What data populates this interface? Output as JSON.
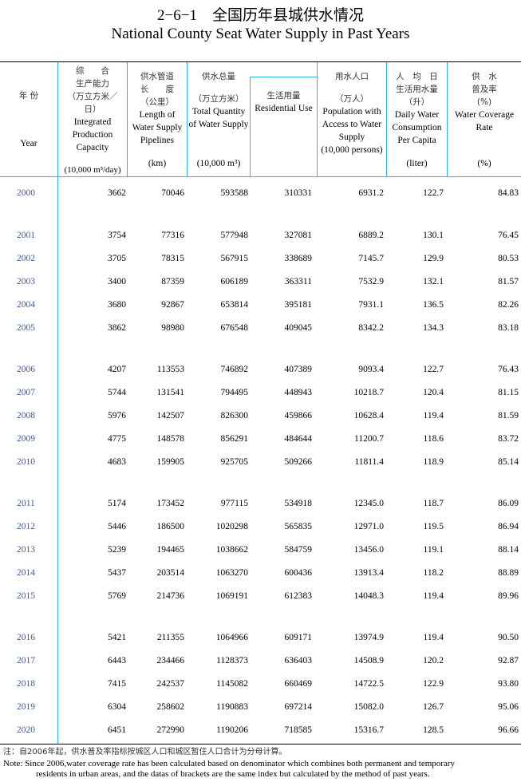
{
  "title_cn": "2−6−1　全国历年县城供水情况",
  "title_en": "National County Seat Water Supply in Past Years",
  "headers": {
    "year_cn": "年 份",
    "year_en": "Year",
    "c1_cn": "综　　合\n生产能力\n（万立方米／\n日）",
    "c1_en": "Integrated Production Capacity",
    "c1_unit": "(10,000 m³/day)",
    "c2_cn": "供水管道\n长　　度\n（公里）",
    "c2_en": "Length of Water Supply Pipelines",
    "c2_unit": "(km)",
    "c3_cn": "供水总量",
    "c3_cn_unit": "（万立方米）",
    "c3_en": "Total Quantity of Water Supply",
    "c3_unit": "(10,000 m³)",
    "c4_cn": "生活用量",
    "c4_en": "Residential Use",
    "c5_cn": "用水人口",
    "c5_cn_unit": "（万人）",
    "c5_en": "Population with Access to Water Supply",
    "c5_unit": "(10,000 persons)",
    "c6_cn": "人　均　日\n生活用水量\n（升）",
    "c6_en": "Daily Water Consumption Per Capita",
    "c6_unit": "(liter)",
    "c7_cn": "供　水\n普及率\n(%)",
    "c7_en": "Water Coverage Rate",
    "c7_unit": "(%)"
  },
  "rows": [
    [
      "2000",
      "3662",
      "70046",
      "593588",
      "310331",
      "6931.2",
      "122.7",
      "84.83"
    ],
    [
      "2001",
      "3754",
      "77316",
      "577948",
      "327081",
      "6889.2",
      "130.1",
      "76.45"
    ],
    [
      "2002",
      "3705",
      "78315",
      "567915",
      "338689",
      "7145.7",
      "129.9",
      "80.53"
    ],
    [
      "2003",
      "3400",
      "87359",
      "606189",
      "363311",
      "7532.9",
      "132.1",
      "81.57"
    ],
    [
      "2004",
      "3680",
      "92867",
      "653814",
      "395181",
      "7931.1",
      "136.5",
      "82.26"
    ],
    [
      "2005",
      "3862",
      "98980",
      "676548",
      "409045",
      "8342.2",
      "134.3",
      "83.18"
    ],
    [
      "2006",
      "4207",
      "113553",
      "746892",
      "407389",
      "9093.4",
      "122.7",
      "76.43"
    ],
    [
      "2007",
      "5744",
      "131541",
      "794495",
      "448943",
      "10218.7",
      "120.4",
      "81.15"
    ],
    [
      "2008",
      "5976",
      "142507",
      "826300",
      "459866",
      "10628.4",
      "119.4",
      "81.59"
    ],
    [
      "2009",
      "4775",
      "148578",
      "856291",
      "484644",
      "11200.7",
      "118.6",
      "83.72"
    ],
    [
      "2010",
      "4683",
      "159905",
      "925705",
      "509266",
      "11811.4",
      "118.9",
      "85.14"
    ],
    [
      "2011",
      "5174",
      "173452",
      "977115",
      "534918",
      "12345.0",
      "118.7",
      "86.09"
    ],
    [
      "2012",
      "5446",
      "186500",
      "1020298",
      "565835",
      "12971.0",
      "119.5",
      "86.94"
    ],
    [
      "2013",
      "5239",
      "194465",
      "1038662",
      "584759",
      "13456.0",
      "119.1",
      "88.14"
    ],
    [
      "2014",
      "5437",
      "203514",
      "1063270",
      "600436",
      "13913.4",
      "118.2",
      "88.89"
    ],
    [
      "2015",
      "5769",
      "214736",
      "1069191",
      "612383",
      "14048.3",
      "119.4",
      "89.96"
    ],
    [
      "2016",
      "5421",
      "211355",
      "1064966",
      "609171",
      "13974.9",
      "119.4",
      "90.50"
    ],
    [
      "2017",
      "6443",
      "234466",
      "1128373",
      "636403",
      "14508.9",
      "120.2",
      "92.87"
    ],
    [
      "2018",
      "7415",
      "242537",
      "1145082",
      "660469",
      "14722.5",
      "122.9",
      "93.80"
    ],
    [
      "2019",
      "6304",
      "258602",
      "1190883",
      "697214",
      "15082.0",
      "126.7",
      "95.06"
    ],
    [
      "2020",
      "6451",
      "272990",
      "1190206",
      "718585",
      "15316.7",
      "128.5",
      "96.66"
    ]
  ],
  "note_cn": "注：自2006年起，供水普及率指标按城区人口和城区暂住人口合计为分母计算。",
  "note_en1": "Note: Since 2006,water coverage rate has been calculated based on denominator which combines both permanent and temporary",
  "note_en2": "residents in urban areas, and the datas of brackets are the same index but calculated by the method of past years."
}
